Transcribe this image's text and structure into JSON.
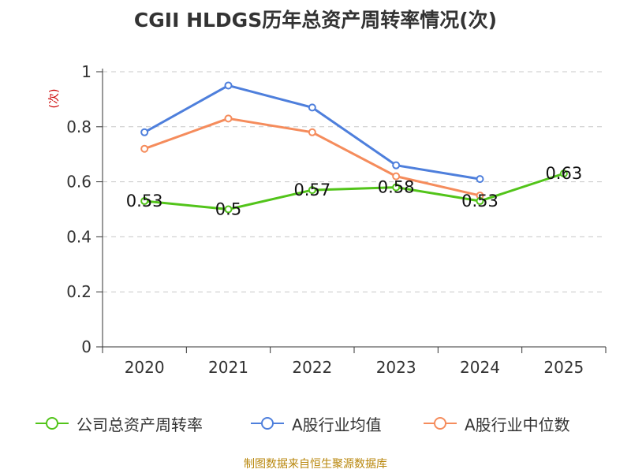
{
  "chart_data": {
    "type": "line",
    "title": "CGII HLDGS历年总资产周转率情况(次)",
    "ylabel": "(次)",
    "xlabel": "",
    "categories": [
      "2020",
      "2021",
      "2022",
      "2023",
      "2024",
      "2025"
    ],
    "ylim": [
      0,
      1
    ],
    "yticks": [
      "0",
      "0.2",
      "0.4",
      "0.6",
      "0.8",
      "1"
    ],
    "ytick_values": [
      0,
      0.2,
      0.4,
      0.6,
      0.8,
      1
    ],
    "grid": true,
    "legend_position": "bottom",
    "series": [
      {
        "name": "公司总资产周转率",
        "color": "#52c41a",
        "values": [
          0.53,
          0.5,
          0.57,
          0.58,
          0.53,
          0.63
        ],
        "labels": [
          "0.53",
          "0.5",
          "0.57",
          "0.58",
          "0.53",
          "0.63"
        ],
        "show_labels": true
      },
      {
        "name": "A股行业均值",
        "color": "#4e7fdc",
        "values": [
          0.78,
          0.95,
          0.87,
          0.66,
          0.61,
          null
        ],
        "show_labels": false
      },
      {
        "name": "A股行业中位数",
        "color": "#f58c5c",
        "values": [
          0.72,
          0.83,
          0.78,
          0.62,
          0.55,
          null
        ],
        "show_labels": false
      }
    ],
    "source": "制图数据来自恒生聚源数据库"
  }
}
